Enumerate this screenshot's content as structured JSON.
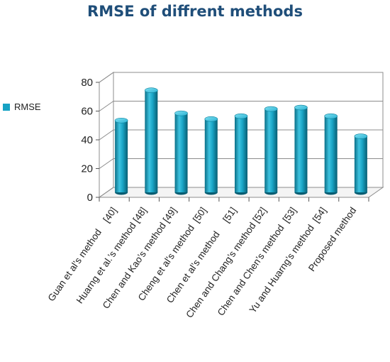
{
  "chart_data": {
    "type": "bar",
    "title": "RMSE of diffrent methods",
    "categories": [
      "Guan et al’s method    [40]",
      "Huarng et al.’s method [48]",
      "Chen and Kao’s method [49]",
      "Cheng et al’s method  [50]",
      "Chen et al’s method     [51]",
      "Chen and Chang’s method [52]",
      "Chen and Chen’s method  [53]",
      "Yu and Huarng’s method  [54]",
      "Proposed method"
    ],
    "series": [
      {
        "name": "RMSE",
        "values": [
          50,
          71,
          55,
          51,
          53,
          58,
          59,
          53,
          39
        ]
      }
    ],
    "ylim": [
      0,
      80
    ],
    "yticks": [
      0,
      20,
      40,
      60,
      80
    ],
    "grid": true,
    "legend_position": "left",
    "bar_color": "#17a2c4"
  }
}
